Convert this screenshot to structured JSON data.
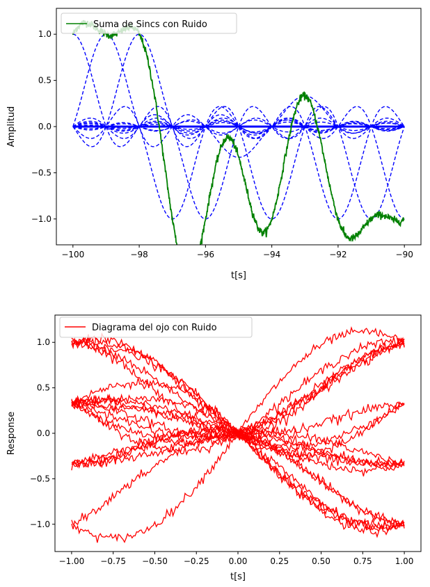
{
  "chart_data": [
    {
      "type": "line",
      "xlabel": "t[s]",
      "ylabel": "Amplitud",
      "xlim": [
        -100.5,
        -89.5
      ],
      "ylim": [
        -1.28,
        1.28
      ],
      "xticks": [
        -100,
        -98,
        -96,
        -94,
        -92,
        -90
      ],
      "xtick_labels": [
        "−100",
        "−98",
        "−96",
        "−94",
        "−92",
        "−90"
      ],
      "yticks": [
        -1.0,
        -0.5,
        0.0,
        0.5,
        1.0
      ],
      "ytick_labels": [
        "−1.0",
        "−0.5",
        "0.0",
        "0.5",
        "1.0"
      ],
      "legend": {
        "position": "upper-left",
        "label": "Suma de Sincs con Ruido",
        "color": "#008000"
      },
      "x_range": [
        -100,
        -90
      ],
      "symbol_times": [
        -100,
        -99,
        -98,
        -97,
        -96,
        -95,
        -94,
        -93,
        -92,
        -91,
        -90
      ],
      "symbols": [
        1,
        1,
        1,
        -1,
        -1,
        -0.3333,
        -1,
        0.3333,
        -1,
        -1,
        -1
      ],
      "series": [
        {
          "name": "Suma de Sincs con Ruido",
          "style": "solid",
          "color": "#008000",
          "noise": 0.02
        },
        {
          "style": "dashed",
          "color": "#0000ff",
          "kind": "individual sinc pulses"
        }
      ]
    },
    {
      "type": "line",
      "xlabel": "t[s]",
      "ylabel": "Response",
      "xlim": [
        -1.1,
        1.1
      ],
      "ylim": [
        -1.3,
        1.3
      ],
      "xticks": [
        -1.0,
        -0.75,
        -0.5,
        -0.25,
        0.0,
        0.25,
        0.5,
        0.75,
        1.0
      ],
      "xtick_labels": [
        "−1.00",
        "−0.75",
        "−0.50",
        "−0.25",
        "0.00",
        "0.25",
        "0.50",
        "0.75",
        "1.00"
      ],
      "yticks": [
        -1.0,
        -0.5,
        0.0,
        0.5,
        1.0
      ],
      "ytick_labels": [
        "−1.0",
        "−0.5",
        "0.0",
        "0.5",
        "1.0"
      ],
      "legend": {
        "position": "upper-left",
        "label": "Diagrama del ojo con Ruido",
        "color": "#ff0000"
      },
      "x_range": [
        -1,
        1
      ],
      "levels": [
        -1,
        -0.3333,
        0.3333,
        1
      ],
      "traces": 20,
      "series": [
        {
          "name": "Diagrama del ojo con Ruido",
          "style": "solid",
          "color": "#ff0000",
          "noise": 0.025
        }
      ]
    }
  ]
}
